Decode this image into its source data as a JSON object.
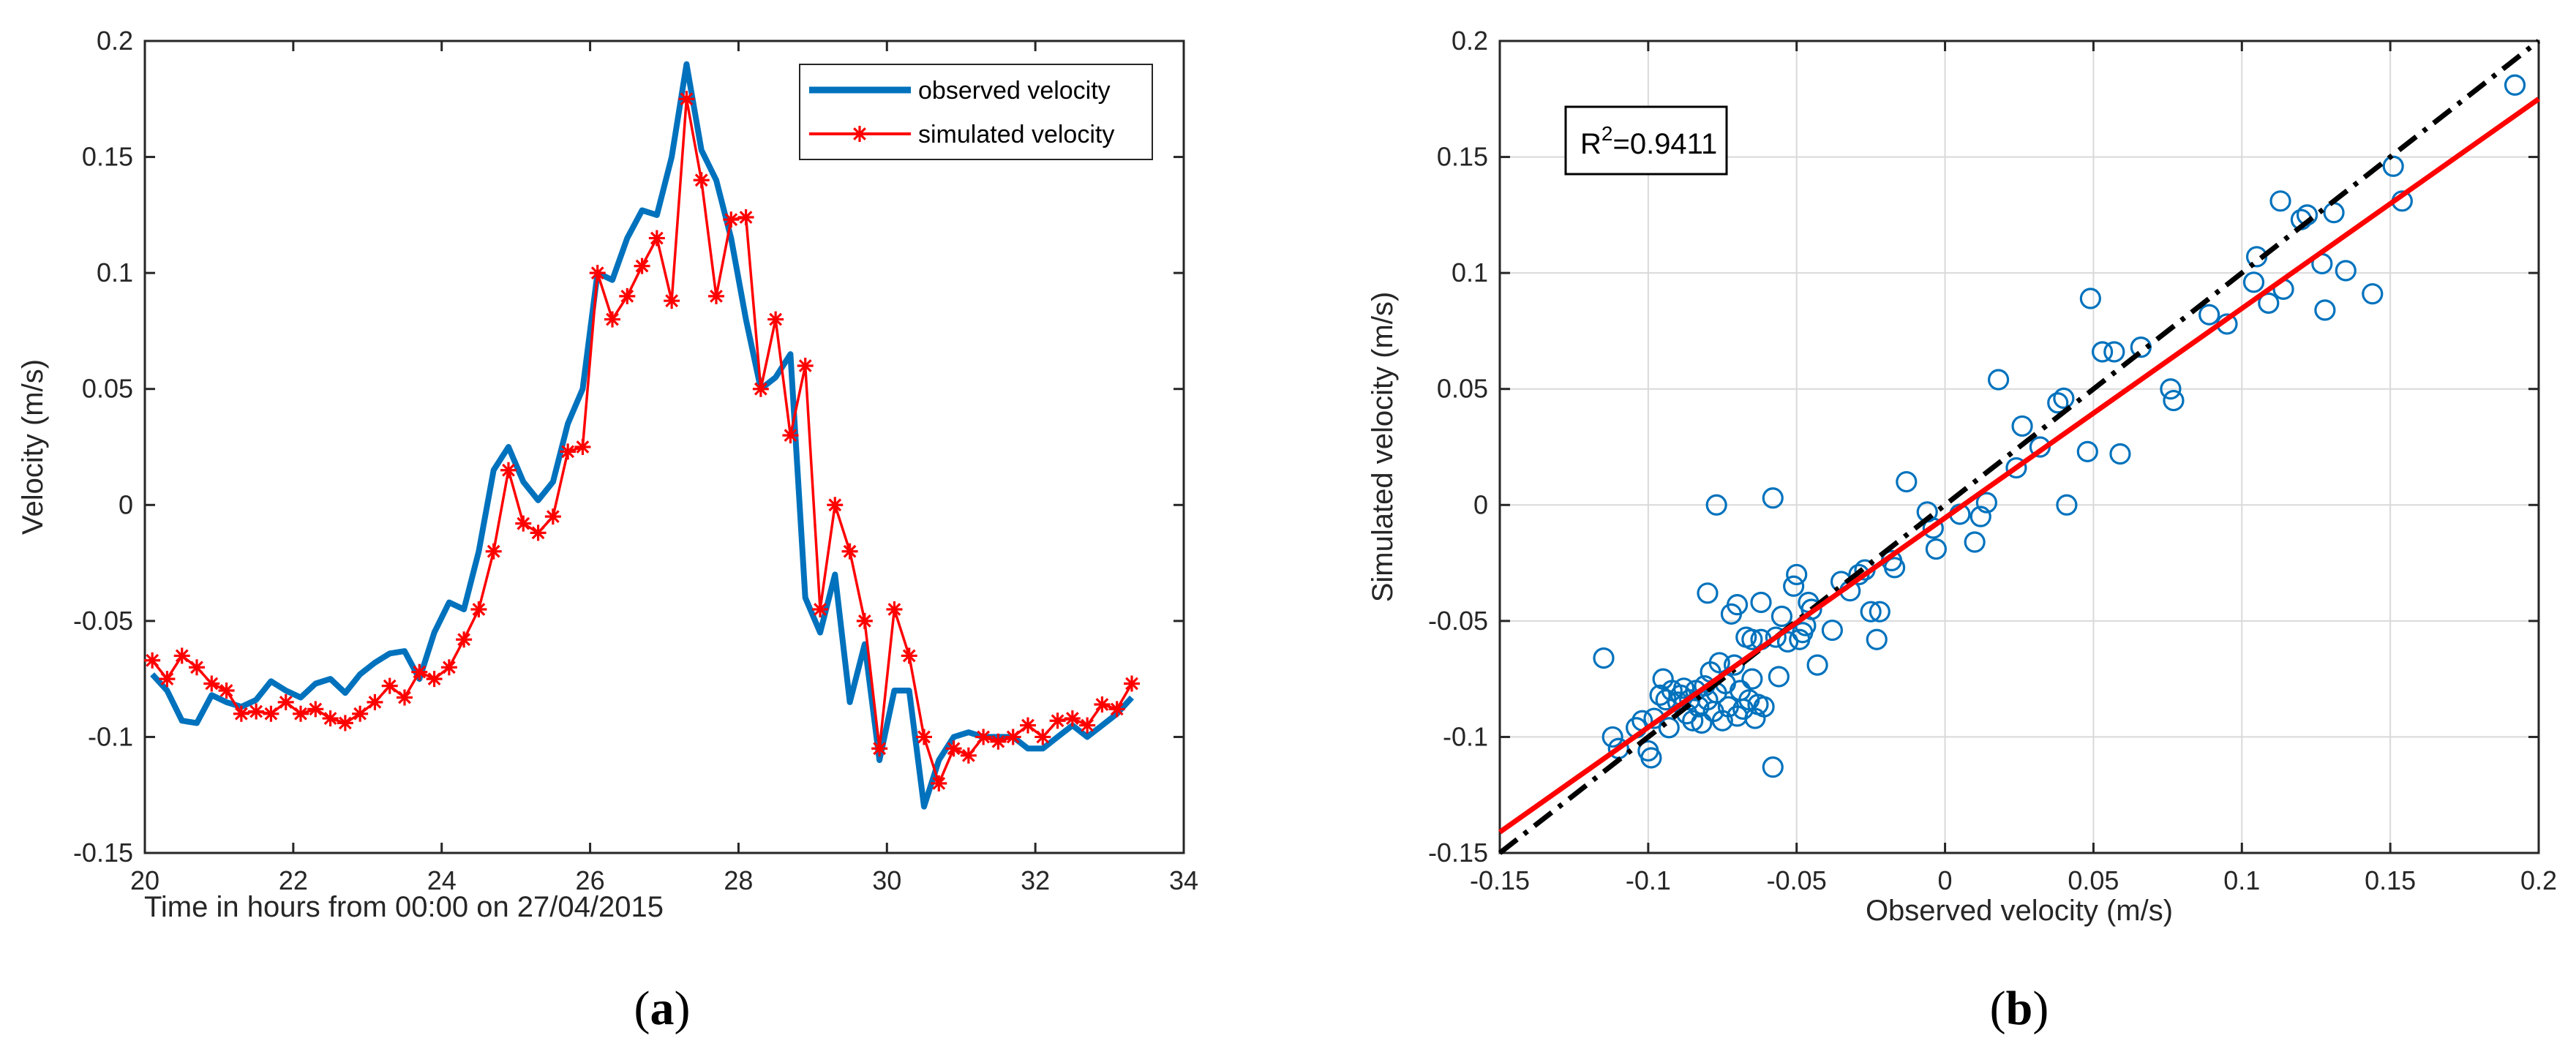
{
  "chart_data": [
    {
      "type": "line",
      "panel_label": "a",
      "title": "",
      "xlabel": "Time in hours from 00:00 on 27/04/2015",
      "ylabel": "Velocity (m/s)",
      "xlim": [
        20,
        34
      ],
      "ylim": [
        -0.15,
        0.2
      ],
      "xticks": [
        "20",
        "22",
        "24",
        "26",
        "28",
        "30",
        "32",
        "34"
      ],
      "yticks": [
        "-0.15",
        "-0.1",
        "-0.05",
        "0",
        "0.05",
        "0.1",
        "0.15",
        "0.2"
      ],
      "legend_position": "top-right",
      "series": [
        {
          "name": "observed velocity",
          "color": "#0072BD",
          "x": [
            20.1,
            20.3,
            20.5,
            20.7,
            20.9,
            21.1,
            21.3,
            21.5,
            21.7,
            21.9,
            22.1,
            22.3,
            22.5,
            22.7,
            22.9,
            23.1,
            23.3,
            23.5,
            23.7,
            23.9,
            24.1,
            24.3,
            24.5,
            24.7,
            24.9,
            25.1,
            25.3,
            25.5,
            25.7,
            25.9,
            26.1,
            26.3,
            26.5,
            26.7,
            26.9,
            27.1,
            27.3,
            27.5,
            27.7,
            27.9,
            28.1,
            28.3,
            28.5,
            28.7,
            28.9,
            29.1,
            29.3,
            29.5,
            29.7,
            29.9,
            30.1,
            30.3,
            30.5,
            30.7,
            30.9,
            31.1,
            31.3,
            31.5,
            31.7,
            31.9,
            32.1,
            32.3,
            32.5,
            32.7,
            32.9,
            33.1,
            33.3
          ],
          "values": [
            -0.073,
            -0.08,
            -0.093,
            -0.094,
            -0.082,
            -0.085,
            -0.087,
            -0.084,
            -0.076,
            -0.08,
            -0.083,
            -0.077,
            -0.075,
            -0.081,
            -0.073,
            -0.068,
            -0.064,
            -0.063,
            -0.075,
            -0.055,
            -0.042,
            -0.045,
            -0.02,
            0.015,
            0.025,
            0.01,
            0.002,
            0.01,
            0.035,
            0.05,
            0.1,
            0.097,
            0.115,
            0.127,
            0.125,
            0.15,
            0.19,
            0.153,
            0.14,
            0.115,
            0.08,
            0.05,
            0.055,
            0.065,
            -0.04,
            -0.055,
            -0.03,
            -0.085,
            -0.06,
            -0.11,
            -0.08,
            -0.08,
            -0.13,
            -0.11,
            -0.1,
            -0.098,
            -0.1,
            -0.1,
            -0.1,
            -0.105,
            -0.105,
            -0.1,
            -0.095,
            -0.1,
            -0.095,
            -0.09,
            -0.083
          ]
        },
        {
          "name": "simulated velocity",
          "color": "#FF0000",
          "x": [
            20.1,
            20.3,
            20.5,
            20.7,
            20.9,
            21.1,
            21.3,
            21.5,
            21.7,
            21.9,
            22.1,
            22.3,
            22.5,
            22.7,
            22.9,
            23.1,
            23.3,
            23.5,
            23.7,
            23.9,
            24.1,
            24.3,
            24.5,
            24.7,
            24.9,
            25.1,
            25.3,
            25.5,
            25.7,
            25.9,
            26.1,
            26.3,
            26.5,
            26.7,
            26.9,
            27.1,
            27.3,
            27.5,
            27.7,
            27.9,
            28.1,
            28.3,
            28.5,
            28.7,
            28.9,
            29.1,
            29.3,
            29.5,
            29.7,
            29.9,
            30.1,
            30.3,
            30.5,
            30.7,
            30.9,
            31.1,
            31.3,
            31.5,
            31.7,
            31.9,
            32.1,
            32.3,
            32.5,
            32.7,
            32.9,
            33.1,
            33.3
          ],
          "values": [
            -0.067,
            -0.075,
            -0.065,
            -0.07,
            -0.077,
            -0.08,
            -0.09,
            -0.089,
            -0.09,
            -0.085,
            -0.09,
            -0.088,
            -0.092,
            -0.094,
            -0.09,
            -0.085,
            -0.078,
            -0.083,
            -0.072,
            -0.075,
            -0.07,
            -0.058,
            -0.045,
            -0.02,
            0.015,
            -0.008,
            -0.012,
            -0.005,
            0.023,
            0.025,
            0.1,
            0.08,
            0.09,
            0.103,
            0.115,
            0.088,
            0.175,
            0.14,
            0.09,
            0.123,
            0.124,
            0.05,
            0.08,
            0.03,
            0.06,
            -0.045,
            0.0,
            -0.02,
            -0.05,
            -0.105,
            -0.045,
            -0.065,
            -0.1,
            -0.12,
            -0.105,
            -0.108,
            -0.1,
            -0.102,
            -0.1,
            -0.095,
            -0.1,
            -0.093,
            -0.092,
            -0.095,
            -0.086,
            -0.088,
            -0.077
          ]
        }
      ]
    },
    {
      "type": "scatter",
      "panel_label": "b",
      "title": "",
      "xlabel": "Observed velocity (m/s)",
      "ylabel": "Simulated velocity (m/s)",
      "xlim": [
        -0.15,
        0.2
      ],
      "ylim": [
        -0.15,
        0.2
      ],
      "xticks": [
        "-0.15",
        "-0.1",
        "-0.05",
        "0",
        "0.05",
        "0.1",
        "0.15",
        "0.2"
      ],
      "yticks": [
        "-0.15",
        "-0.1",
        "-0.05",
        "0",
        "0.05",
        "0.1",
        "0.15",
        "0.2"
      ],
      "grid": true,
      "annotation": {
        "prefix": "R",
        "superscript": "2",
        "suffix": "=0.9411"
      },
      "points_color": "#0072BD",
      "points": [
        [
          -0.115,
          -0.066
        ],
        [
          -0.112,
          -0.1
        ],
        [
          -0.11,
          -0.105
        ],
        [
          -0.104,
          -0.096
        ],
        [
          -0.102,
          -0.093
        ],
        [
          -0.1,
          -0.106
        ],
        [
          -0.099,
          -0.109
        ],
        [
          -0.098,
          -0.092
        ],
        [
          -0.096,
          -0.082
        ],
        [
          -0.095,
          -0.075
        ],
        [
          -0.094,
          -0.084
        ],
        [
          -0.093,
          -0.096
        ],
        [
          -0.092,
          -0.08
        ],
        [
          -0.09,
          -0.085
        ],
        [
          -0.089,
          -0.082
        ],
        [
          -0.088,
          -0.079
        ],
        [
          -0.087,
          -0.09
        ],
        [
          -0.086,
          -0.084
        ],
        [
          -0.085,
          -0.093
        ],
        [
          -0.084,
          -0.08
        ],
        [
          -0.083,
          -0.087
        ],
        [
          -0.082,
          -0.094
        ],
        [
          -0.081,
          -0.078
        ],
        [
          -0.08,
          -0.084
        ],
        [
          -0.08,
          -0.038
        ],
        [
          -0.079,
          -0.072
        ],
        [
          -0.078,
          -0.089
        ],
        [
          -0.077,
          -0.081
        ],
        [
          -0.077,
          0.0
        ],
        [
          -0.076,
          -0.068
        ],
        [
          -0.075,
          -0.093
        ],
        [
          -0.074,
          -0.077
        ],
        [
          -0.073,
          -0.087
        ],
        [
          -0.072,
          -0.047
        ],
        [
          -0.071,
          -0.069
        ],
        [
          -0.07,
          -0.043
        ],
        [
          -0.07,
          -0.091
        ],
        [
          -0.069,
          -0.08
        ],
        [
          -0.068,
          -0.088
        ],
        [
          -0.067,
          -0.057
        ],
        [
          -0.066,
          -0.084
        ],
        [
          -0.065,
          -0.058
        ],
        [
          -0.065,
          -0.075
        ],
        [
          -0.064,
          -0.092
        ],
        [
          -0.063,
          -0.086
        ],
        [
          -0.062,
          -0.058
        ],
        [
          -0.062,
          -0.042
        ],
        [
          -0.061,
          -0.087
        ],
        [
          -0.058,
          -0.113
        ],
        [
          -0.058,
          0.003
        ],
        [
          -0.057,
          -0.057
        ],
        [
          -0.056,
          -0.074
        ],
        [
          -0.055,
          -0.048
        ],
        [
          -0.053,
          -0.059
        ],
        [
          -0.051,
          -0.035
        ],
        [
          -0.05,
          -0.03
        ],
        [
          -0.049,
          -0.058
        ],
        [
          -0.048,
          -0.055
        ],
        [
          -0.047,
          -0.052
        ],
        [
          -0.046,
          -0.042
        ],
        [
          -0.045,
          -0.045
        ],
        [
          -0.043,
          -0.069
        ],
        [
          -0.038,
          -0.054
        ],
        [
          -0.035,
          -0.033
        ],
        [
          -0.032,
          -0.037
        ],
        [
          -0.029,
          -0.03
        ],
        [
          -0.027,
          -0.028
        ],
        [
          -0.025,
          -0.046
        ],
        [
          -0.023,
          -0.058
        ],
        [
          -0.022,
          -0.046
        ],
        [
          -0.018,
          -0.024
        ],
        [
          -0.017,
          -0.027
        ],
        [
          -0.013,
          0.01
        ],
        [
          -0.006,
          -0.003
        ],
        [
          -0.004,
          -0.01
        ],
        [
          -0.003,
          -0.019
        ],
        [
          0.005,
          -0.004
        ],
        [
          0.01,
          -0.016
        ],
        [
          0.012,
          -0.005
        ],
        [
          0.014,
          0.001
        ],
        [
          0.018,
          0.054
        ],
        [
          0.024,
          0.016
        ],
        [
          0.026,
          0.034
        ],
        [
          0.032,
          0.025
        ],
        [
          0.038,
          0.044
        ],
        [
          0.04,
          0.046
        ],
        [
          0.041,
          0.0
        ],
        [
          0.048,
          0.023
        ],
        [
          0.049,
          0.089
        ],
        [
          0.053,
          0.066
        ],
        [
          0.057,
          0.066
        ],
        [
          0.059,
          0.022
        ],
        [
          0.066,
          0.068
        ],
        [
          0.076,
          0.05
        ],
        [
          0.077,
          0.045
        ],
        [
          0.089,
          0.082
        ],
        [
          0.095,
          0.078
        ],
        [
          0.104,
          0.096
        ],
        [
          0.105,
          0.107
        ],
        [
          0.109,
          0.087
        ],
        [
          0.113,
          0.131
        ],
        [
          0.114,
          0.093
        ],
        [
          0.12,
          0.123
        ],
        [
          0.122,
          0.125
        ],
        [
          0.127,
          0.104
        ],
        [
          0.128,
          0.084
        ],
        [
          0.131,
          0.126
        ],
        [
          0.135,
          0.101
        ],
        [
          0.144,
          0.091
        ],
        [
          0.151,
          0.146
        ],
        [
          0.154,
          0.131
        ],
        [
          0.192,
          0.181
        ]
      ],
      "lines": [
        {
          "name": "1:1 line",
          "color": "#000000",
          "style": "dash-dot",
          "x": [
            -0.15,
            0.2
          ],
          "y": [
            -0.15,
            0.2
          ]
        },
        {
          "name": "fit line",
          "color": "#FF0000",
          "style": "solid",
          "x": [
            -0.15,
            0.2
          ],
          "y": [
            -0.141,
            0.175
          ]
        }
      ]
    }
  ]
}
